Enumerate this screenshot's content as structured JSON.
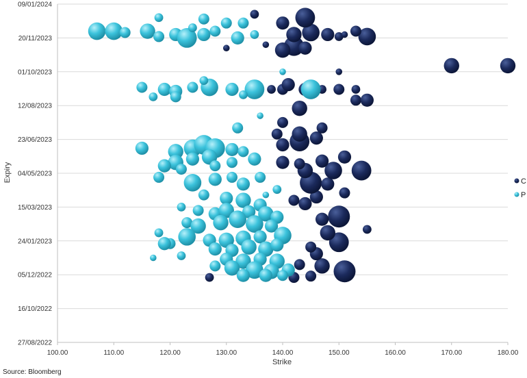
{
  "chart_data": {
    "type": "scatter",
    "variant": "bubble",
    "xlabel": "Strike",
    "ylabel": "Expiry",
    "xlim": [
      100,
      180
    ],
    "xticks": [
      "100.00",
      "110.00",
      "120.00",
      "130.00",
      "140.00",
      "150.00",
      "160.00",
      "170.00",
      "180.00"
    ],
    "ylim": [
      "2022-08-27",
      "2024-01-09"
    ],
    "yticks": [
      "27/08/2022",
      "16/10/2022",
      "05/12/2022",
      "24/01/2023",
      "15/03/2023",
      "04/05/2023",
      "23/06/2023",
      "12/08/2023",
      "01/10/2023",
      "20/11/2023",
      "09/01/2024"
    ],
    "grid": "horizontal",
    "legend": "right",
    "colors": {
      "C": "#1b2a5c",
      "P": "#3cc3dc"
    },
    "series": [
      {
        "name": "C",
        "points": [
          {
            "x": 142,
            "y": "2022-12-01",
            "s": 5
          },
          {
            "x": 145,
            "y": "2022-12-03",
            "s": 5
          },
          {
            "x": 151,
            "y": "2022-12-10",
            "s": 10
          },
          {
            "x": 147,
            "y": "2022-12-18",
            "s": 7
          },
          {
            "x": 143,
            "y": "2022-12-20",
            "s": 5
          },
          {
            "x": 150,
            "y": "2023-01-22",
            "s": 9
          },
          {
            "x": 146,
            "y": "2023-01-05",
            "s": 6
          },
          {
            "x": 148,
            "y": "2023-02-05",
            "s": 7
          },
          {
            "x": 145,
            "y": "2023-01-15",
            "s": 5
          },
          {
            "x": 150,
            "y": "2023-03-01",
            "s": 10
          },
          {
            "x": 155,
            "y": "2023-02-10",
            "s": 4
          },
          {
            "x": 147,
            "y": "2023-02-25",
            "s": 6
          },
          {
            "x": 144,
            "y": "2023-03-20",
            "s": 6
          },
          {
            "x": 142,
            "y": "2023-03-25",
            "s": 5
          },
          {
            "x": 146,
            "y": "2023-03-30",
            "s": 6
          },
          {
            "x": 145,
            "y": "2023-04-20",
            "s": 10
          },
          {
            "x": 148,
            "y": "2023-04-18",
            "s": 6
          },
          {
            "x": 151,
            "y": "2023-04-05",
            "s": 5
          },
          {
            "x": 154,
            "y": "2023-05-08",
            "s": 9
          },
          {
            "x": 149,
            "y": "2023-05-08",
            "s": 8
          },
          {
            "x": 144,
            "y": "2023-05-08",
            "s": 7
          },
          {
            "x": 140,
            "y": "2023-05-20",
            "s": 6
          },
          {
            "x": 143,
            "y": "2023-05-18",
            "s": 5
          },
          {
            "x": 147,
            "y": "2023-05-22",
            "s": 6
          },
          {
            "x": 151,
            "y": "2023-05-28",
            "s": 6
          },
          {
            "x": 143,
            "y": "2023-06-20",
            "s": 9
          },
          {
            "x": 146,
            "y": "2023-06-25",
            "s": 6
          },
          {
            "x": 140,
            "y": "2023-06-15",
            "s": 6
          },
          {
            "x": 143,
            "y": "2023-07-01",
            "s": 7
          },
          {
            "x": 139,
            "y": "2023-07-01",
            "s": 5
          },
          {
            "x": 147,
            "y": "2023-07-10",
            "s": 5
          },
          {
            "x": 140,
            "y": "2023-07-18",
            "s": 5
          },
          {
            "x": 143,
            "y": "2023-08-08",
            "s": 7
          },
          {
            "x": 153,
            "y": "2023-08-20",
            "s": 5
          },
          {
            "x": 155,
            "y": "2023-08-20",
            "s": 6
          },
          {
            "x": 144,
            "y": "2023-09-05",
            "s": 6
          },
          {
            "x": 140,
            "y": "2023-09-05",
            "s": 5
          },
          {
            "x": 147,
            "y": "2023-09-05",
            "s": 4
          },
          {
            "x": 150,
            "y": "2023-09-05",
            "s": 5
          },
          {
            "x": 153,
            "y": "2023-09-05",
            "s": 4
          },
          {
            "x": 141,
            "y": "2023-09-12",
            "s": 6
          },
          {
            "x": 138,
            "y": "2023-09-05",
            "s": 4
          },
          {
            "x": 170,
            "y": "2023-10-10",
            "s": 7
          },
          {
            "x": 180,
            "y": "2023-10-10",
            "s": 7
          },
          {
            "x": 150,
            "y": "2023-10-01",
            "s": 3
          },
          {
            "x": 142,
            "y": "2023-11-08",
            "s": 9
          },
          {
            "x": 140,
            "y": "2023-11-02",
            "s": 7
          },
          {
            "x": 144,
            "y": "2023-11-05",
            "s": 6
          },
          {
            "x": 145,
            "y": "2023-11-28",
            "s": 8
          },
          {
            "x": 142,
            "y": "2023-11-25",
            "s": 7
          },
          {
            "x": 155,
            "y": "2023-11-22",
            "s": 8
          },
          {
            "x": 148,
            "y": "2023-11-25",
            "s": 6
          },
          {
            "x": 153,
            "y": "2023-11-30",
            "s": 5
          },
          {
            "x": 150,
            "y": "2023-11-22",
            "s": 4
          },
          {
            "x": 144,
            "y": "2023-12-20",
            "s": 9
          },
          {
            "x": 140,
            "y": "2023-12-12",
            "s": 6
          },
          {
            "x": 135,
            "y": "2023-12-25",
            "s": 4
          },
          {
            "x": 137,
            "y": "2023-11-10",
            "s": 3
          },
          {
            "x": 151,
            "y": "2023-11-25",
            "s": 3
          },
          {
            "x": 127,
            "y": "2022-12-01",
            "s": 4
          },
          {
            "x": 130,
            "y": "2023-11-05",
            "s": 3
          }
        ]
      },
      {
        "name": "P",
        "points": [
          {
            "x": 107,
            "y": "2023-11-30",
            "s": 8
          },
          {
            "x": 110,
            "y": "2023-11-30",
            "s": 8
          },
          {
            "x": 112,
            "y": "2023-11-28",
            "s": 5
          },
          {
            "x": 116,
            "y": "2023-11-30",
            "s": 7
          },
          {
            "x": 118,
            "y": "2023-11-22",
            "s": 5
          },
          {
            "x": 121,
            "y": "2023-11-25",
            "s": 6
          },
          {
            "x": 123,
            "y": "2023-11-20",
            "s": 9
          },
          {
            "x": 126,
            "y": "2023-11-25",
            "s": 6
          },
          {
            "x": 128,
            "y": "2023-11-30",
            "s": 5
          },
          {
            "x": 132,
            "y": "2023-11-20",
            "s": 6
          },
          {
            "x": 135,
            "y": "2023-11-25",
            "s": 4
          },
          {
            "x": 133,
            "y": "2023-12-12",
            "s": 5
          },
          {
            "x": 130,
            "y": "2023-12-12",
            "s": 5
          },
          {
            "x": 126,
            "y": "2023-12-18",
            "s": 5
          },
          {
            "x": 118,
            "y": "2023-12-20",
            "s": 4
          },
          {
            "x": 124,
            "y": "2023-12-05",
            "s": 4
          },
          {
            "x": 115,
            "y": "2023-09-08",
            "s": 5
          },
          {
            "x": 119,
            "y": "2023-09-05",
            "s": 6
          },
          {
            "x": 121,
            "y": "2023-09-02",
            "s": 6
          },
          {
            "x": 124,
            "y": "2023-09-08",
            "s": 5
          },
          {
            "x": 127,
            "y": "2023-09-08",
            "s": 8
          },
          {
            "x": 131,
            "y": "2023-09-05",
            "s": 6
          },
          {
            "x": 135,
            "y": "2023-09-05",
            "s": 9
          },
          {
            "x": 145,
            "y": "2023-09-05",
            "s": 9
          },
          {
            "x": 121,
            "y": "2023-08-25",
            "s": 5
          },
          {
            "x": 117,
            "y": "2023-08-25",
            "s": 4
          },
          {
            "x": 133,
            "y": "2023-08-28",
            "s": 4
          },
          {
            "x": 126,
            "y": "2023-09-18",
            "s": 4
          },
          {
            "x": 132,
            "y": "2023-07-10",
            "s": 5
          },
          {
            "x": 115,
            "y": "2023-06-10",
            "s": 6
          },
          {
            "x": 121,
            "y": "2023-06-05",
            "s": 7
          },
          {
            "x": 124,
            "y": "2023-06-10",
            "s": 8
          },
          {
            "x": 126,
            "y": "2023-06-15",
            "s": 9
          },
          {
            "x": 128,
            "y": "2023-06-10",
            "s": 9
          },
          {
            "x": 131,
            "y": "2023-06-08",
            "s": 6
          },
          {
            "x": 133,
            "y": "2023-06-05",
            "s": 5
          },
          {
            "x": 121,
            "y": "2023-05-20",
            "s": 7
          },
          {
            "x": 124,
            "y": "2023-05-25",
            "s": 6
          },
          {
            "x": 127,
            "y": "2023-05-28",
            "s": 7
          },
          {
            "x": 119,
            "y": "2023-05-15",
            "s": 6
          },
          {
            "x": 122,
            "y": "2023-05-10",
            "s": 5
          },
          {
            "x": 128,
            "y": "2023-05-15",
            "s": 5
          },
          {
            "x": 131,
            "y": "2023-05-20",
            "s": 5
          },
          {
            "x": 135,
            "y": "2023-05-25",
            "s": 6
          },
          {
            "x": 118,
            "y": "2023-04-28",
            "s": 5
          },
          {
            "x": 124,
            "y": "2023-04-20",
            "s": 8
          },
          {
            "x": 128,
            "y": "2023-04-25",
            "s": 6
          },
          {
            "x": 131,
            "y": "2023-04-28",
            "s": 5
          },
          {
            "x": 133,
            "y": "2023-04-18",
            "s": 6
          },
          {
            "x": 136,
            "y": "2023-04-28",
            "s": 5
          },
          {
            "x": 139,
            "y": "2023-04-10",
            "s": 4
          },
          {
            "x": 126,
            "y": "2023-04-02",
            "s": 5
          },
          {
            "x": 130,
            "y": "2023-03-28",
            "s": 6
          },
          {
            "x": 133,
            "y": "2023-03-25",
            "s": 7
          },
          {
            "x": 136,
            "y": "2023-03-18",
            "s": 6
          },
          {
            "x": 122,
            "y": "2023-03-15",
            "s": 4
          },
          {
            "x": 125,
            "y": "2023-03-10",
            "s": 5
          },
          {
            "x": 128,
            "y": "2023-03-05",
            "s": 6
          },
          {
            "x": 130,
            "y": "2023-03-10",
            "s": 7
          },
          {
            "x": 134,
            "y": "2023-03-08",
            "s": 6
          },
          {
            "x": 137,
            "y": "2023-03-05",
            "s": 7
          },
          {
            "x": 139,
            "y": "2023-02-28",
            "s": 6
          },
          {
            "x": 132,
            "y": "2023-02-25",
            "s": 8
          },
          {
            "x": 123,
            "y": "2023-02-20",
            "s": 5
          },
          {
            "x": 125,
            "y": "2023-02-15",
            "s": 7
          },
          {
            "x": 129,
            "y": "2023-02-20",
            "s": 7
          },
          {
            "x": 135,
            "y": "2023-02-18",
            "s": 8
          },
          {
            "x": 138,
            "y": "2023-02-15",
            "s": 6
          },
          {
            "x": 140,
            "y": "2023-02-01",
            "s": 8
          },
          {
            "x": 123,
            "y": "2023-01-30",
            "s": 8
          },
          {
            "x": 127,
            "y": "2023-01-25",
            "s": 6
          },
          {
            "x": 130,
            "y": "2023-01-25",
            "s": 7
          },
          {
            "x": 133,
            "y": "2023-01-28",
            "s": 7
          },
          {
            "x": 136,
            "y": "2023-01-30",
            "s": 6
          },
          {
            "x": 120,
            "y": "2023-01-20",
            "s": 5
          },
          {
            "x": 128,
            "y": "2023-01-12",
            "s": 6
          },
          {
            "x": 131,
            "y": "2023-01-10",
            "s": 6
          },
          {
            "x": 134,
            "y": "2023-01-15",
            "s": 7
          },
          {
            "x": 137,
            "y": "2023-01-12",
            "s": 7
          },
          {
            "x": 139,
            "y": "2023-01-18",
            "s": 6
          },
          {
            "x": 130,
            "y": "2022-12-28",
            "s": 6
          },
          {
            "x": 133,
            "y": "2022-12-25",
            "s": 7
          },
          {
            "x": 136,
            "y": "2022-12-28",
            "s": 6
          },
          {
            "x": 139,
            "y": "2022-12-25",
            "s": 7
          },
          {
            "x": 128,
            "y": "2022-12-18",
            "s": 5
          },
          {
            "x": 131,
            "y": "2022-12-15",
            "s": 7
          },
          {
            "x": 135,
            "y": "2022-12-12",
            "s": 8
          },
          {
            "x": 138,
            "y": "2022-12-10",
            "s": 7
          },
          {
            "x": 141,
            "y": "2022-12-12",
            "s": 6
          },
          {
            "x": 133,
            "y": "2022-12-04",
            "s": 6
          },
          {
            "x": 137,
            "y": "2022-12-04",
            "s": 6
          },
          {
            "x": 140,
            "y": "2022-12-04",
            "s": 5
          },
          {
            "x": 122,
            "y": "2023-01-02",
            "s": 4
          },
          {
            "x": 117,
            "y": "2022-12-30",
            "s": 3
          },
          {
            "x": 118,
            "y": "2023-02-05",
            "s": 4
          },
          {
            "x": 119,
            "y": "2023-01-20",
            "s": 6
          },
          {
            "x": 137,
            "y": "2023-04-02",
            "s": 3
          },
          {
            "x": 140,
            "y": "2023-10-01",
            "s": 3
          },
          {
            "x": 136,
            "y": "2023-07-28",
            "s": 3
          }
        ]
      }
    ]
  },
  "source": "Source: Bloomberg"
}
